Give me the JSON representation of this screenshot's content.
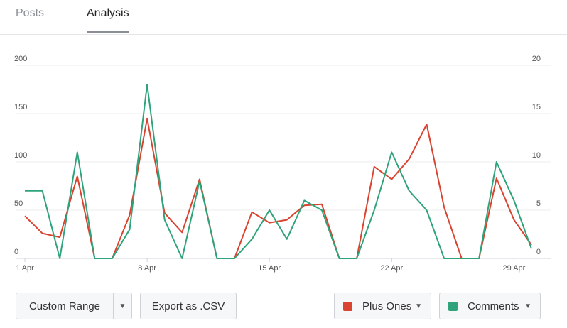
{
  "tabs": [
    {
      "label": "Posts",
      "active": false
    },
    {
      "label": "Analysis",
      "active": true
    }
  ],
  "controls": {
    "custom_range_label": "Custom Range",
    "export_label": "Export as .CSV",
    "series_buttons": [
      {
        "label": "Plus Ones",
        "color": "#d9432f"
      },
      {
        "label": "Comments",
        "color": "#2fa37a"
      }
    ],
    "dropdown_icon": "caret-down-icon"
  },
  "chart_data": {
    "type": "line",
    "x": [
      "1 Apr",
      "2 Apr",
      "3 Apr",
      "4 Apr",
      "5 Apr",
      "6 Apr",
      "7 Apr",
      "8 Apr",
      "9 Apr",
      "10 Apr",
      "11 Apr",
      "12 Apr",
      "13 Apr",
      "14 Apr",
      "15 Apr",
      "16 Apr",
      "17 Apr",
      "18 Apr",
      "19 Apr",
      "20 Apr",
      "21 Apr",
      "22 Apr",
      "23 Apr",
      "24 Apr",
      "25 Apr",
      "26 Apr",
      "27 Apr",
      "28 Apr",
      "29 Apr",
      "30 Apr"
    ],
    "x_tick_labels": [
      "1 Apr",
      "8 Apr",
      "15 Apr",
      "22 Apr",
      "29 Apr"
    ],
    "left_axis": {
      "ticks": [
        0,
        50,
        100,
        150,
        200
      ],
      "ylim": [
        0,
        200
      ]
    },
    "right_axis": {
      "ticks": [
        0,
        5,
        10,
        15,
        20
      ],
      "ylim": [
        0,
        20
      ]
    },
    "grid": true,
    "series": [
      {
        "name": "Plus Ones",
        "color": "#d9432f",
        "axis": "left",
        "values": [
          44,
          26,
          22,
          85,
          0,
          0,
          45,
          145,
          47,
          27,
          82,
          0,
          0,
          48,
          37,
          40,
          55,
          56,
          0,
          0,
          95,
          82,
          103,
          139,
          53,
          0,
          0,
          83,
          40,
          14
        ]
      },
      {
        "name": "Comments",
        "color": "#2fa37a",
        "axis": "right",
        "values": [
          7,
          7,
          0,
          11,
          0,
          0,
          3,
          18,
          4,
          0,
          8,
          0,
          0,
          2,
          5,
          2,
          6,
          5,
          0,
          0,
          5,
          11,
          7,
          5,
          0,
          0,
          0,
          10,
          6,
          1
        ]
      }
    ]
  }
}
